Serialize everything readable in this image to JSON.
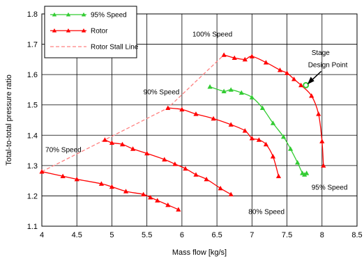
{
  "chart_data": {
    "type": "scatter",
    "xlabel": "Mass flow [kg/s]",
    "ylabel": "Total-to-total pressure ratio",
    "xlim": [
      4,
      8.5
    ],
    "ylim": [
      1.1,
      1.8
    ],
    "x_ticks": [
      "4",
      "4.5",
      "5",
      "5.5",
      "6",
      "6.5",
      "7",
      "7.5",
      "8",
      "8.5"
    ],
    "y_ticks": [
      "1.1",
      "1.2",
      "1.3",
      "1.4",
      "1.5",
      "1.6",
      "1.7",
      "1.8"
    ],
    "grid": true,
    "legend_position": "top-left",
    "legend": [
      {
        "label": "95% Speed",
        "color": "#33cc33",
        "style": "line-with-triangle"
      },
      {
        "label": "Rotor",
        "color": "#ff0000",
        "style": "line-with-triangle"
      },
      {
        "label": "Rotor Stall Line",
        "color": "#ff8080",
        "style": "dashed"
      }
    ],
    "series": [
      {
        "name": "70% Speed",
        "color": "#ff0000",
        "x": [
          4.0,
          4.3,
          4.5,
          4.85,
          5.0,
          5.2,
          5.45,
          5.55,
          5.65,
          5.8,
          5.95
        ],
        "y": [
          1.28,
          1.265,
          1.255,
          1.24,
          1.23,
          1.215,
          1.205,
          1.195,
          1.185,
          1.17,
          1.155
        ]
      },
      {
        "name": "80% Speed",
        "color": "#ff0000",
        "x": [
          4.9,
          5.0,
          5.15,
          5.3,
          5.5,
          5.75,
          5.9,
          6.05,
          6.2,
          6.35,
          6.55,
          6.7
        ],
        "y": [
          1.385,
          1.375,
          1.37,
          1.355,
          1.34,
          1.32,
          1.305,
          1.29,
          1.27,
          1.255,
          1.225,
          1.205
        ]
      },
      {
        "name": "90% Speed",
        "color": "#ff0000",
        "x": [
          5.8,
          6.0,
          6.2,
          6.45,
          6.7,
          6.9,
          7.0,
          7.1,
          7.2,
          7.3,
          7.38
        ],
        "y": [
          1.49,
          1.485,
          1.47,
          1.455,
          1.435,
          1.415,
          1.39,
          1.385,
          1.37,
          1.33,
          1.265
        ]
      },
      {
        "name": "100% Speed",
        "color": "#ff0000",
        "x": [
          6.6,
          6.75,
          6.9,
          7.0,
          7.2,
          7.4,
          7.5,
          7.6,
          7.7,
          7.85,
          7.95,
          8.0,
          8.02
        ],
        "y": [
          1.665,
          1.655,
          1.65,
          1.66,
          1.64,
          1.615,
          1.605,
          1.585,
          1.565,
          1.53,
          1.47,
          1.38,
          1.3
        ]
      },
      {
        "name": "95% Speed",
        "color": "#33cc33",
        "x": [
          6.4,
          6.6,
          6.7,
          6.85,
          7.0,
          7.15,
          7.3,
          7.45,
          7.55,
          7.65,
          7.72,
          7.75,
          7.78
        ],
        "y": [
          1.56,
          1.545,
          1.55,
          1.54,
          1.525,
          1.49,
          1.44,
          1.395,
          1.355,
          1.31,
          1.275,
          1.27,
          1.275
        ]
      },
      {
        "name": "Rotor Stall Line",
        "color": "#ff8080",
        "dashed": true,
        "x": [
          4.0,
          4.9,
          5.8,
          6.6
        ],
        "y": [
          1.28,
          1.385,
          1.49,
          1.665
        ]
      }
    ],
    "annotations": [
      {
        "text": "100% Speed",
        "x": 6.15,
        "y": 1.725
      },
      {
        "text": "90% Speed",
        "x": 5.45,
        "y": 1.535
      },
      {
        "text": "70% Speed",
        "x": 4.05,
        "y": 1.345
      },
      {
        "text": "80% Speed",
        "x": 6.95,
        "y": 1.14
      },
      {
        "text": "95% Speed",
        "x": 7.85,
        "y": 1.22
      },
      {
        "text": "Stage",
        "x": 7.85,
        "y": 1.665
      },
      {
        "text": "Design Point",
        "x": 7.8,
        "y": 1.625
      }
    ],
    "design_point": {
      "x": 7.77,
      "y": 1.565,
      "color": "#33cc33"
    }
  }
}
